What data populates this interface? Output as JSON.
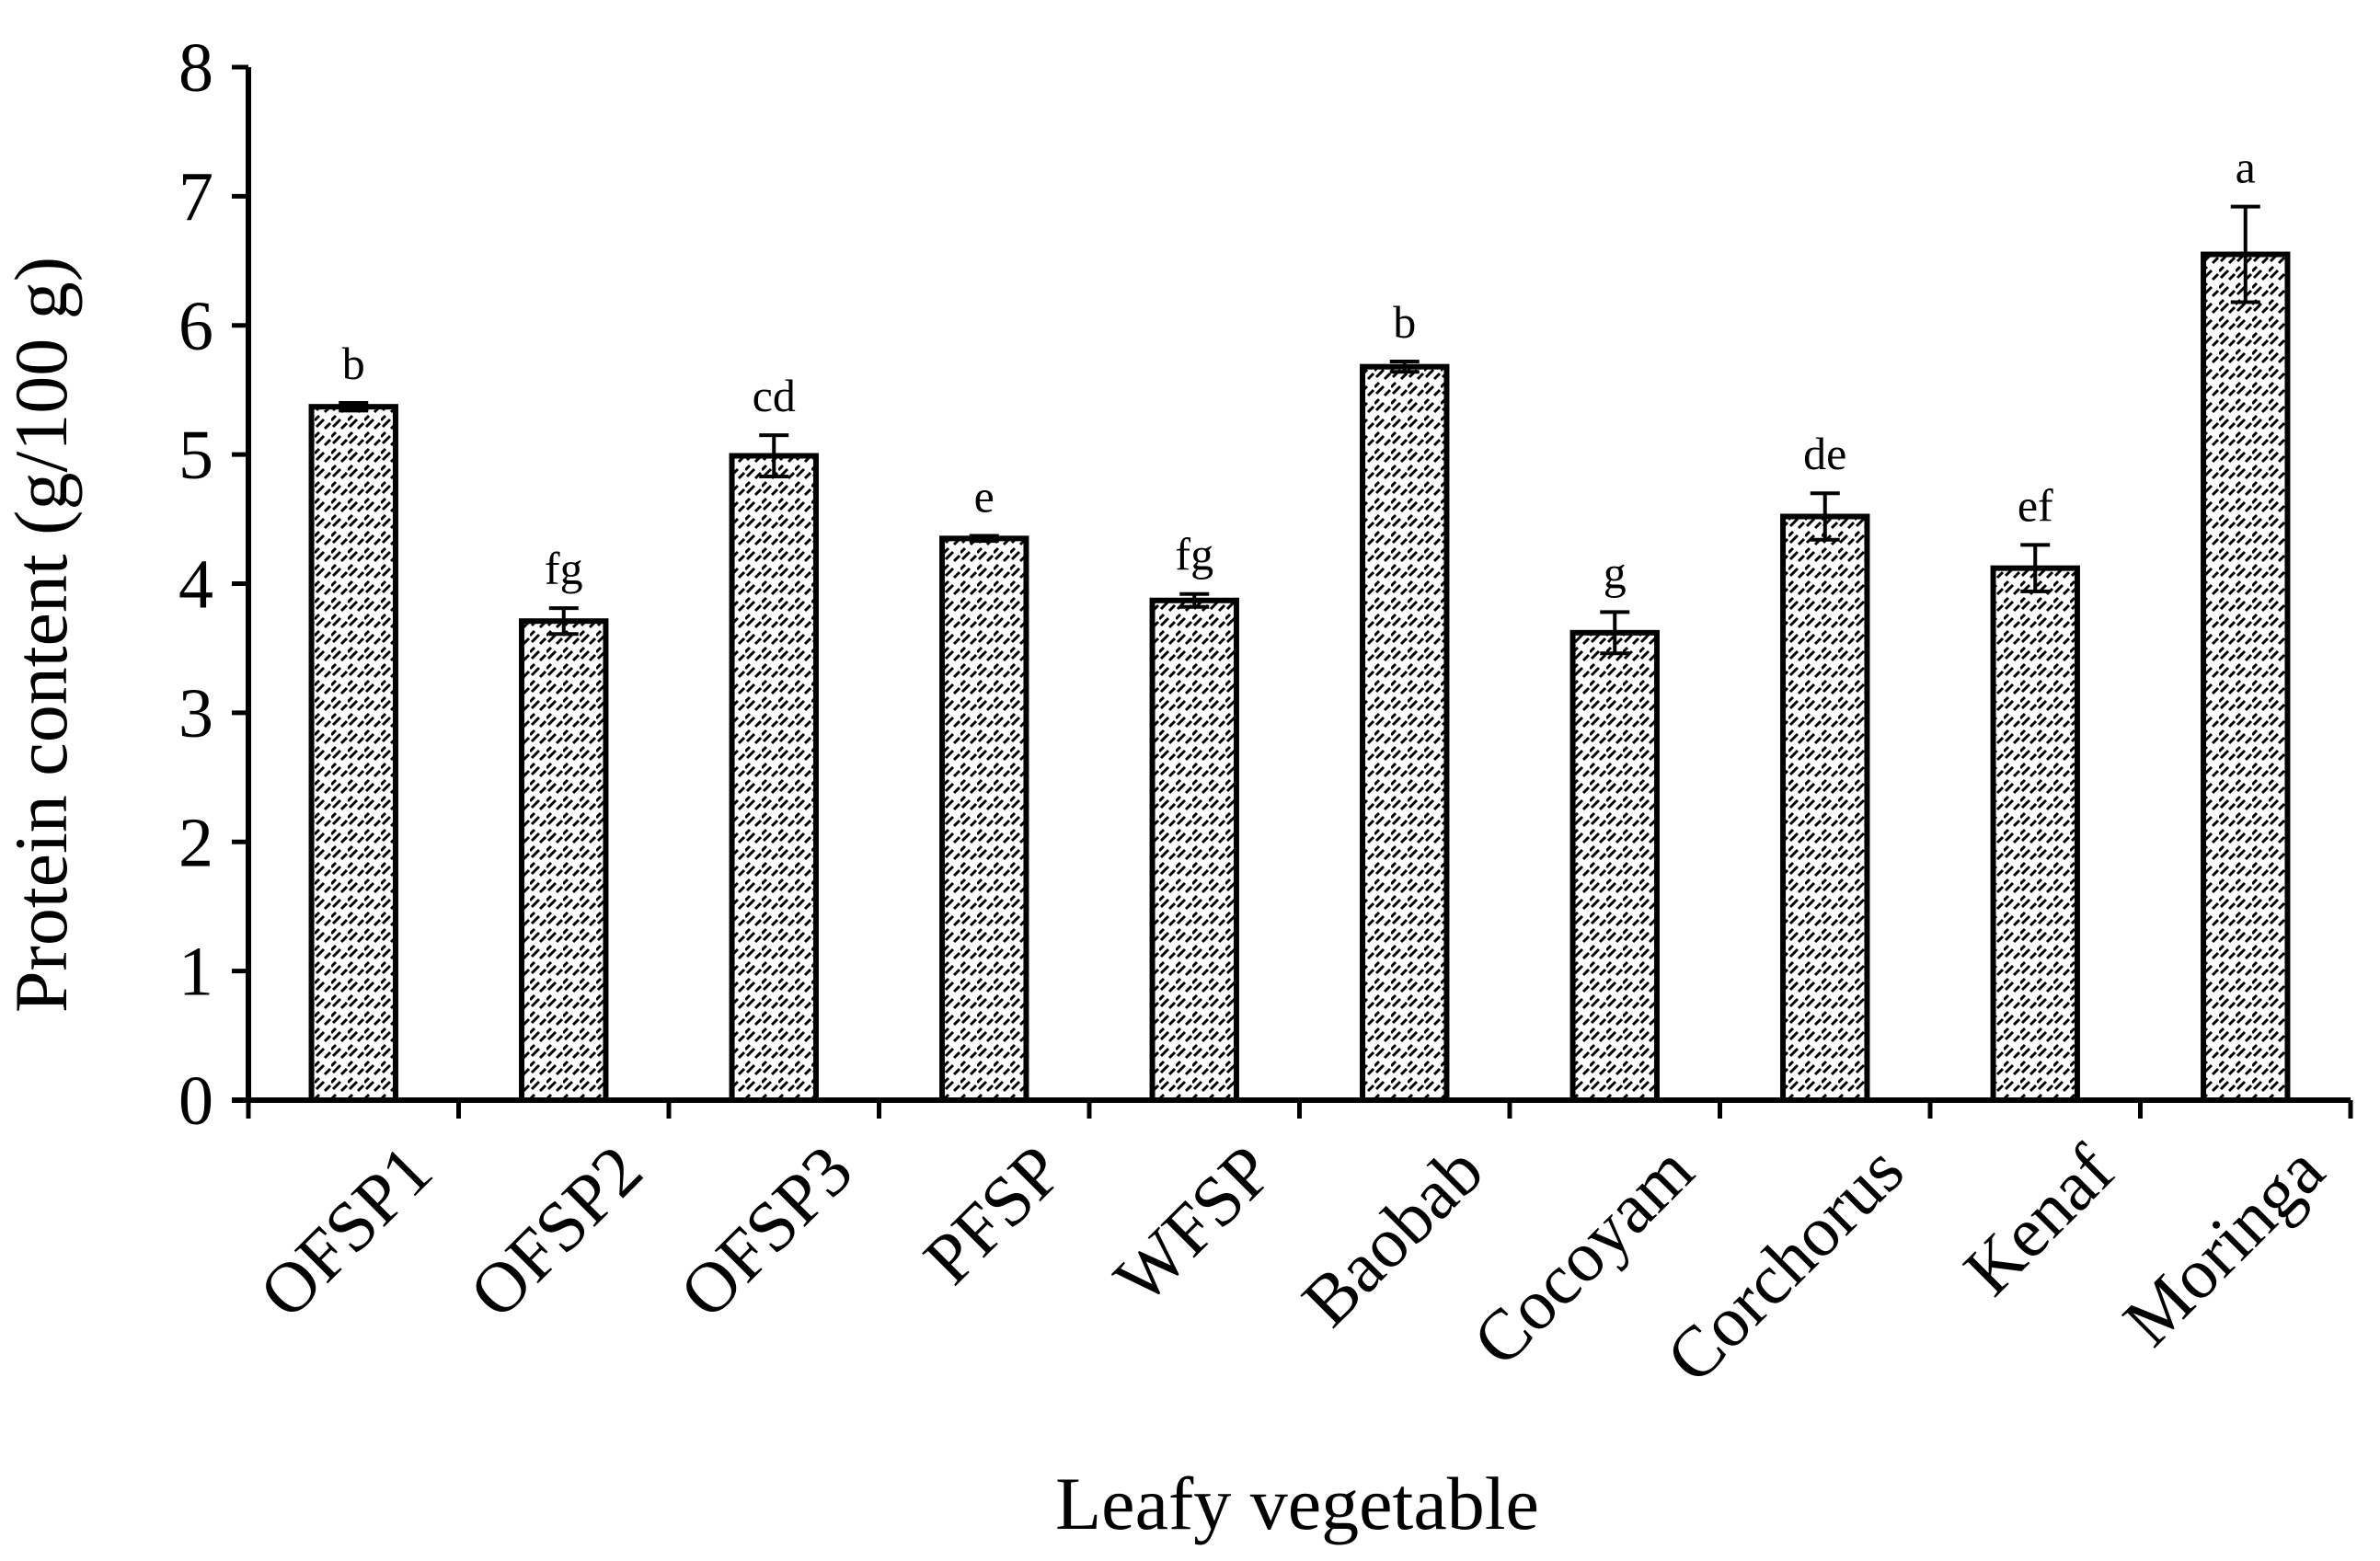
{
  "chart_data": {
    "type": "bar",
    "title": "",
    "xlabel": "Leafy vegetable",
    "ylabel": "Protein content (g/100 g)",
    "ylim": [
      0,
      8
    ],
    "yticks": [
      "0",
      "1",
      "2",
      "3",
      "4",
      "5",
      "6",
      "7",
      "8"
    ],
    "grid": false,
    "legend": "none",
    "categories": [
      "OFSP1",
      "OFSP2",
      "OFSP3",
      "PFSP",
      "WFSP",
      "Baobab",
      "Cocoyam",
      "Corchorus",
      "Kenaf",
      "Moringa"
    ],
    "values": [
      5.37,
      3.71,
      4.99,
      4.35,
      3.87,
      5.68,
      3.62,
      4.52,
      4.12,
      6.55
    ],
    "errors": [
      0.03,
      0.1,
      0.16,
      0.02,
      0.05,
      0.04,
      0.16,
      0.18,
      0.18,
      0.37
    ],
    "significance_labels": [
      "b",
      "fg",
      "cd",
      "e",
      "fg",
      "b",
      "g",
      "de",
      "ef",
      "a"
    ]
  }
}
